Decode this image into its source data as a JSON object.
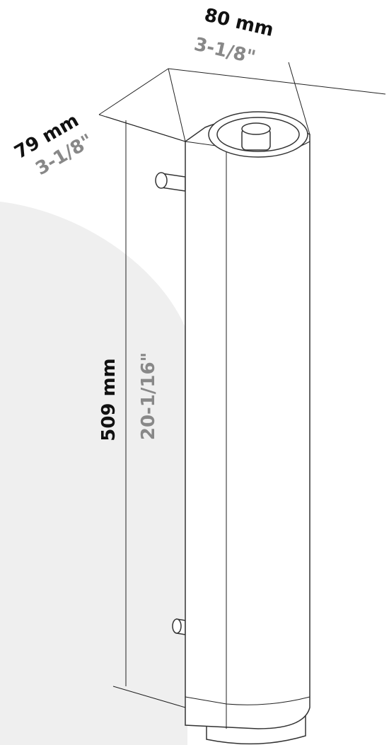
{
  "dimensions": {
    "width": {
      "metric": "80 mm",
      "imperial": "3-1/8\""
    },
    "depth": {
      "metric": "79 mm",
      "imperial": "3-1/8\""
    },
    "height": {
      "metric": "509 mm",
      "imperial": "20-1/16\""
    }
  }
}
